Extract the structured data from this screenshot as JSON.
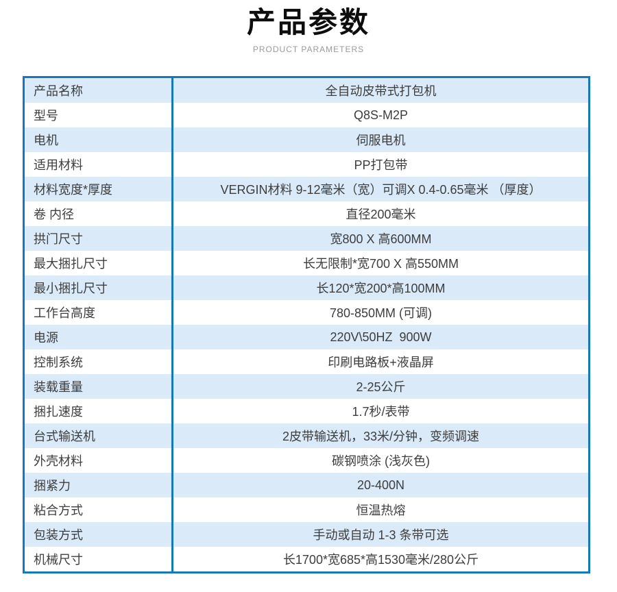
{
  "header": {
    "title": "产品参数",
    "subtitle": "PRODUCT PARAMETERS"
  },
  "table": {
    "rows": [
      {
        "label": "产品名称",
        "value": "全自动皮带式打包机"
      },
      {
        "label": "型号",
        "value": "Q8S-M2P"
      },
      {
        "label": "电机",
        "value": "伺服电机"
      },
      {
        "label": "适用材料",
        "value": "PP打包带"
      },
      {
        "label": "材料宽度*厚度",
        "value": "VERGIN材料 9-12毫米（宽）可调X 0.4-0.65毫米 （厚度）"
      },
      {
        "label": "卷 内径",
        "value": "直径200毫米"
      },
      {
        "label": "拱门尺寸",
        "value": "宽800 X 高600MM"
      },
      {
        "label": "最大捆扎尺寸",
        "value": "长无限制*宽700 X 高550MM"
      },
      {
        "label": "最小捆扎尺寸",
        "value": "长120*宽200*高100MM"
      },
      {
        "label": "工作台高度",
        "value": "780-850MM (可调)"
      },
      {
        "label": "电源",
        "value": "220V\\50HZ  900W"
      },
      {
        "label": "控制系统",
        "value": "印刷电路板+液晶屏"
      },
      {
        "label": "装载重量",
        "value": "2-25公斤"
      },
      {
        "label": "捆扎速度",
        "value": "1.7秒/表带"
      },
      {
        "label": "台式输送机",
        "value": "2皮带输送机，33米/分钟，变频调速"
      },
      {
        "label": "外壳材料",
        "value": "碳钢喷涂 (浅灰色)"
      },
      {
        "label": "捆紧力",
        "value": "20-400N"
      },
      {
        "label": "粘合方式",
        "value": "恒温热熔"
      },
      {
        "label": "包装方式",
        "value": "手动或自动 1-3 条带可选"
      },
      {
        "label": "机械尺寸",
        "value": "长1700*宽685*高1530毫米/280公斤"
      }
    ]
  },
  "colors": {
    "border_blue": "#1478be",
    "row_alt_blue": "#daeaf8",
    "text_dark": "#3d3d3d",
    "subtitle_gray": "#9a9a9a"
  }
}
